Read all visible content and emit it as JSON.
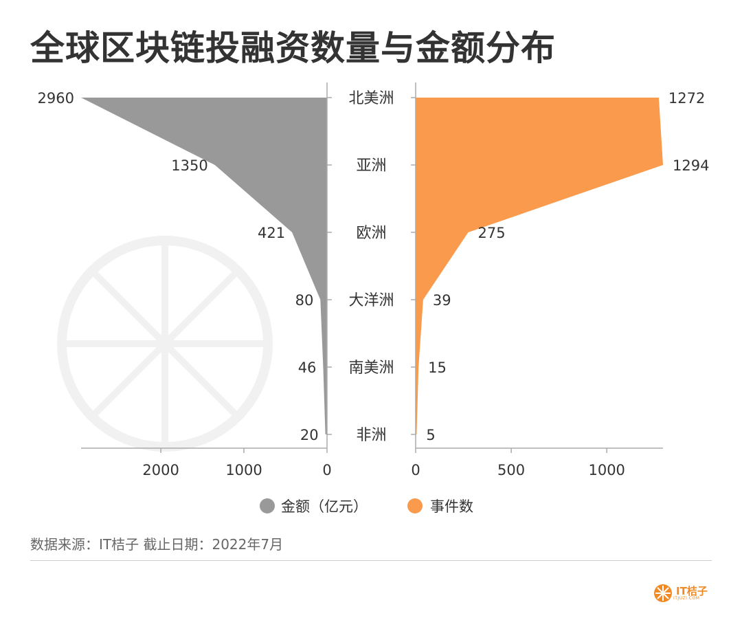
{
  "title": "全球区块链投融资数量与金额分布",
  "chart_data": {
    "type": "bar",
    "layout": "butterfly-area",
    "categories": [
      "北美洲",
      "亚洲",
      "欧洲",
      "大洋洲",
      "南美洲",
      "非洲"
    ],
    "series": [
      {
        "name": "金额（亿元）",
        "values": [
          2960,
          1350,
          421,
          80,
          46,
          20
        ],
        "color": "#999999",
        "side": "left",
        "xlim": [
          0,
          2960
        ],
        "ticks": [
          2000,
          1000,
          0
        ]
      },
      {
        "name": "事件数",
        "values": [
          1272,
          1294,
          275,
          39,
          15,
          5
        ],
        "color": "#f99a4c",
        "side": "right",
        "xlim": [
          0,
          1294
        ],
        "ticks": [
          0,
          500,
          1000
        ]
      }
    ],
    "legend": "bottom-center"
  },
  "source": "数据来源：IT桔子 截止日期：2022年7月",
  "logo": {
    "text": "IT桔子",
    "sub": "ITJUZI.COM",
    "color": "#f08a24"
  }
}
